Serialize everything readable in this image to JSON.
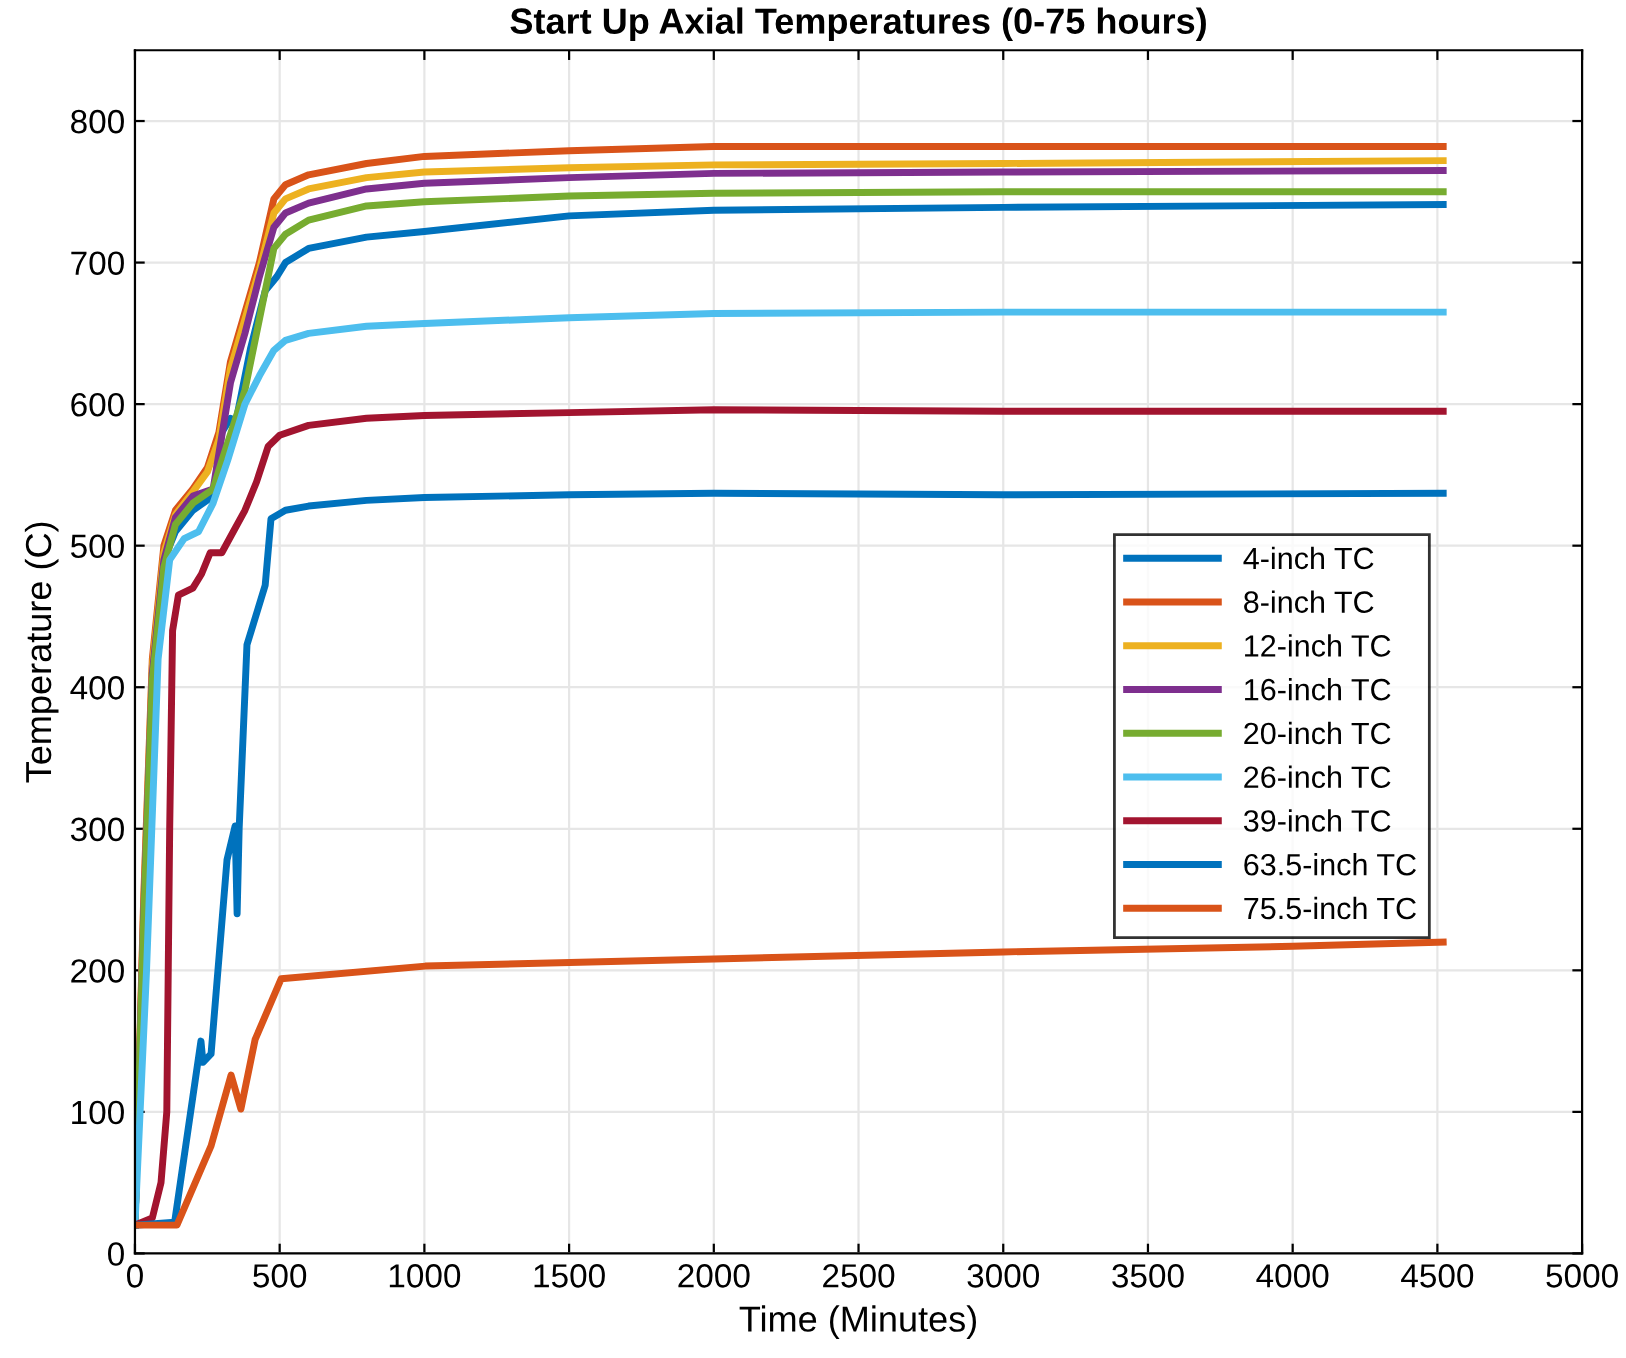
{
  "chart_data": {
    "type": "line",
    "title": "Start Up Axial Temperatures (0-75 hours)",
    "xlabel": "Time (Minutes)",
    "ylabel": "Temperature (C)",
    "xlim": [
      0,
      5000
    ],
    "ylim": [
      0,
      850
    ],
    "xticks": [
      0,
      500,
      1000,
      1500,
      2000,
      2500,
      3000,
      3500,
      4000,
      4500,
      5000
    ],
    "yticks": [
      0,
      100,
      200,
      300,
      400,
      500,
      600,
      700,
      800
    ],
    "grid": true,
    "legend": "right",
    "marker": "none",
    "line_style": "solid",
    "series": [
      {
        "name": "4-inch TC",
        "color": "#0072bd",
        "x": [
          0,
          30,
          60,
          100,
          140,
          200,
          270,
          300,
          330,
          346,
          400,
          450,
          490,
          520,
          600,
          800,
          1000,
          1500,
          2000,
          3000,
          4520
        ],
        "values": [
          20,
          230,
          410,
          490,
          510,
          525,
          535,
          580,
          590,
          585,
          640,
          680,
          690,
          700,
          710,
          718,
          722,
          733,
          737,
          739,
          741
        ]
      },
      {
        "name": "8-inch TC",
        "color": "#d95319",
        "x": [
          0,
          30,
          60,
          100,
          140,
          200,
          250,
          290,
          330,
          380,
          430,
          480,
          520,
          600,
          800,
          1000,
          1500,
          2000,
          3000,
          4520
        ],
        "values": [
          20,
          250,
          420,
          500,
          525,
          540,
          555,
          580,
          630,
          665,
          700,
          745,
          755,
          762,
          770,
          775,
          779,
          782,
          782,
          782
        ]
      },
      {
        "name": "12-inch TC",
        "color": "#edb120",
        "x": [
          0,
          30,
          60,
          100,
          140,
          200,
          250,
          290,
          330,
          380,
          430,
          480,
          520,
          600,
          800,
          1000,
          1500,
          2000,
          3000,
          4520
        ],
        "values": [
          20,
          245,
          415,
          495,
          522,
          538,
          552,
          575,
          625,
          660,
          695,
          735,
          745,
          752,
          760,
          764,
          767,
          769,
          770,
          772
        ]
      },
      {
        "name": "16-inch TC",
        "color": "#7e2f8e",
        "x": [
          0,
          30,
          60,
          100,
          140,
          200,
          270,
          290,
          330,
          380,
          430,
          480,
          520,
          600,
          800,
          1000,
          1500,
          2000,
          3000,
          4520
        ],
        "values": [
          20,
          240,
          410,
          490,
          520,
          535,
          540,
          565,
          615,
          650,
          690,
          725,
          735,
          742,
          752,
          756,
          760,
          763,
          764,
          765
        ]
      },
      {
        "name": "20-inch TC",
        "color": "#77ac30",
        "x": [
          0,
          30,
          60,
          100,
          140,
          200,
          270,
          300,
          380,
          430,
          480,
          520,
          600,
          800,
          1000,
          1500,
          2000,
          3000,
          4520
        ],
        "values": [
          20,
          235,
          405,
          485,
          515,
          530,
          540,
          560,
          610,
          660,
          710,
          720,
          730,
          740,
          743,
          747,
          749,
          750,
          750
        ]
      },
      {
        "name": "26-inch TC",
        "color": "#4dbeee",
        "x": [
          0,
          40,
          80,
          120,
          170,
          220,
          270,
          320,
          380,
          430,
          480,
          520,
          600,
          800,
          1000,
          1500,
          2000,
          3000,
          4520
        ],
        "values": [
          20,
          200,
          420,
          490,
          505,
          510,
          530,
          560,
          600,
          620,
          638,
          645,
          650,
          655,
          657,
          661,
          664,
          665,
          665
        ]
      },
      {
        "name": "39-inch TC",
        "color": "#a2142f",
        "x": [
          0,
          60,
          90,
          110,
          120,
          130,
          150,
          200,
          230,
          260,
          300,
          340,
          380,
          420,
          460,
          500,
          600,
          800,
          1000,
          1500,
          2000,
          3000,
          4520
        ],
        "values": [
          20,
          25,
          50,
          100,
          300,
          440,
          465,
          470,
          480,
          495,
          495,
          510,
          525,
          545,
          570,
          578,
          585,
          590,
          592,
          594,
          596,
          595,
          595
        ]
      },
      {
        "name": "63.5-inch TC",
        "color": "#0072bd",
        "x": [
          0,
          137,
          228,
          235,
          263,
          318,
          346,
          353,
          360,
          387,
          450,
          470,
          520,
          600,
          800,
          1000,
          1500,
          2000,
          3000,
          4520
        ],
        "values": [
          20,
          22,
          150,
          135,
          141,
          278,
          302,
          240,
          300,
          430,
          472,
          519,
          525,
          528,
          532,
          534,
          536,
          537,
          536,
          537
        ]
      },
      {
        "name": "75.5-inch TC",
        "color": "#d95319",
        "x": [
          0,
          145,
          263,
          332,
          366,
          415,
          505,
          1003,
          2000,
          3000,
          4000,
          4520
        ],
        "values": [
          20,
          20,
          76,
          126,
          102,
          151,
          194,
          203,
          208,
          213,
          217,
          220
        ]
      }
    ]
  }
}
